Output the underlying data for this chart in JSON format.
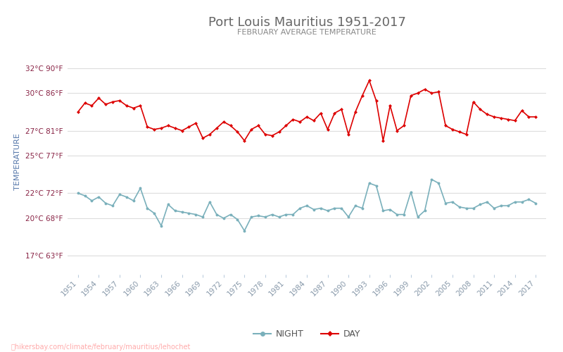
{
  "title": "Port Louis Mauritius 1951-2017",
  "subtitle": "FEBRUARY AVERAGE TEMPERATURE",
  "ylabel": "TEMPERATURE",
  "watermark": "hikersbay.com/climate/february/mauritius/lehochet",
  "years": [
    1951,
    1952,
    1953,
    1954,
    1955,
    1956,
    1957,
    1958,
    1959,
    1960,
    1961,
    1962,
    1963,
    1964,
    1965,
    1966,
    1967,
    1968,
    1969,
    1970,
    1971,
    1972,
    1973,
    1974,
    1975,
    1976,
    1977,
    1978,
    1979,
    1980,
    1981,
    1982,
    1983,
    1984,
    1985,
    1986,
    1987,
    1988,
    1989,
    1990,
    1991,
    1992,
    1993,
    1994,
    1995,
    1996,
    1997,
    1998,
    1999,
    2000,
    2001,
    2002,
    2003,
    2004,
    2005,
    2006,
    2007,
    2008,
    2009,
    2010,
    2011,
    2012,
    2013,
    2014,
    2015,
    2016,
    2017
  ],
  "day_temps": [
    28.5,
    29.2,
    29.0,
    29.6,
    29.1,
    29.3,
    29.4,
    29.0,
    28.8,
    29.0,
    27.3,
    27.1,
    27.2,
    27.4,
    27.2,
    27.0,
    27.3,
    27.6,
    26.4,
    26.7,
    27.2,
    27.7,
    27.4,
    26.9,
    26.2,
    27.1,
    27.4,
    26.7,
    26.6,
    26.9,
    27.4,
    27.9,
    27.7,
    28.1,
    27.8,
    28.4,
    27.1,
    28.4,
    28.7,
    26.7,
    28.5,
    29.8,
    31.0,
    29.4,
    26.2,
    29.0,
    27.0,
    27.4,
    29.8,
    30.0,
    30.3,
    30.0,
    30.1,
    27.4,
    27.1,
    26.9,
    26.7,
    29.3,
    28.7,
    28.3,
    28.1,
    28.0,
    27.9,
    27.8,
    28.6,
    28.1,
    28.1
  ],
  "night_temps": [
    22.0,
    21.8,
    21.4,
    21.7,
    21.2,
    21.0,
    21.9,
    21.7,
    21.4,
    22.4,
    20.8,
    20.4,
    19.4,
    21.1,
    20.6,
    20.5,
    20.4,
    20.3,
    20.1,
    21.3,
    20.3,
    20.0,
    20.3,
    19.9,
    19.0,
    20.1,
    20.2,
    20.1,
    20.3,
    20.1,
    20.3,
    20.3,
    20.8,
    21.0,
    20.7,
    20.8,
    20.6,
    20.8,
    20.8,
    20.1,
    21.0,
    20.8,
    22.8,
    22.6,
    20.6,
    20.7,
    20.3,
    20.3,
    22.1,
    20.1,
    20.6,
    23.1,
    22.8,
    21.2,
    21.3,
    20.9,
    20.8,
    20.8,
    21.1,
    21.3,
    20.8,
    21.0,
    21.0,
    21.3,
    21.3,
    21.5,
    21.2
  ],
  "day_color": "#dd0000",
  "night_color": "#7ab0bb",
  "background_color": "#ffffff",
  "grid_color": "#dddddd",
  "title_color": "#666666",
  "subtitle_color": "#888888",
  "ylabel_color": "#5577aa",
  "ytick_color": "#882244",
  "xtick_color": "#8899aa",
  "ytick_labels": [
    "17°C 63°F",
    "20°C 68°F",
    "22°C 72°F",
    "25°C 77°F",
    "27°C 81°F",
    "30°C 86°F",
    "32°C 90°F"
  ],
  "ytick_values": [
    17,
    20,
    22,
    25,
    27,
    30,
    32
  ],
  "ylim": [
    15.5,
    33.5
  ],
  "xlim": [
    1949.5,
    2018.5
  ],
  "xtick_years": [
    1951,
    1954,
    1957,
    1960,
    1963,
    1966,
    1969,
    1972,
    1975,
    1978,
    1981,
    1984,
    1987,
    1990,
    1993,
    1996,
    1999,
    2002,
    2005,
    2008,
    2011,
    2014,
    2017
  ],
  "legend_night": "NIGHT",
  "legend_day": "DAY",
  "watermark_color": "#ffaaaa",
  "figsize": [
    8.0,
    5.0
  ],
  "dpi": 100
}
